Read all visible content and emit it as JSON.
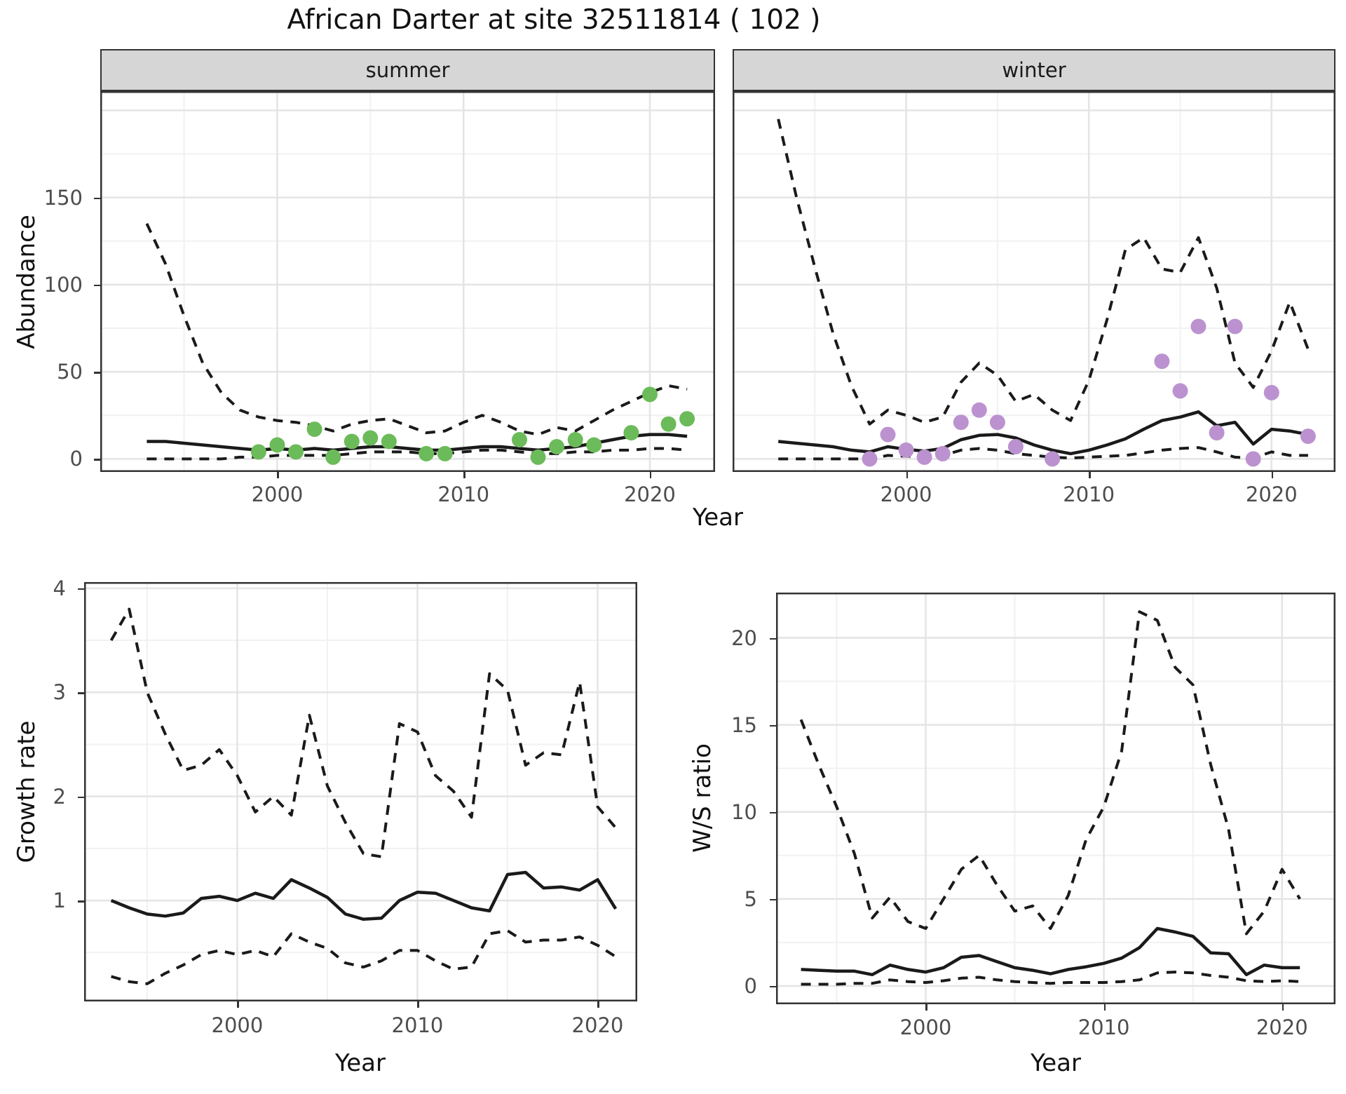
{
  "title": "African Darter at site 32511814 ( 102 )",
  "colors": {
    "summer_point": "#6CBB5A",
    "winter_point": "#BB92CF",
    "line": "#1A1A1A",
    "strip_bg": "#D6D6D6",
    "panel_border": "#333333",
    "grid_major": "#E4E4E4",
    "grid_minor": "#F1F1F1",
    "axis_text": "#4D4D4D",
    "text": "#111111"
  },
  "chart_data": [
    {
      "id": "abundance-summer",
      "type": "line",
      "facet_label": "summer",
      "xlabel": "Year",
      "ylabel": "Abundance",
      "xlim": [
        1990.5,
        2023.5
      ],
      "ylim": [
        -7.5,
        211
      ],
      "x_ticks": [
        2000,
        2010,
        2020
      ],
      "x_minor": [
        1995,
        2005,
        2015
      ],
      "y_ticks": [
        0,
        50,
        100,
        150
      ],
      "y_major_grid": [
        0,
        50,
        100,
        150,
        200
      ],
      "y_minor_grid": [
        25,
        75,
        125,
        175
      ],
      "show_y_tick_labels": true,
      "x": [
        1993,
        1994,
        1995,
        1996,
        1997,
        1998,
        1999,
        2000,
        2001,
        2002,
        2003,
        2004,
        2005,
        2006,
        2007,
        2008,
        2009,
        2010,
        2011,
        2012,
        2013,
        2014,
        2015,
        2016,
        2017,
        2018,
        2019,
        2020,
        2021,
        2022
      ],
      "series": [
        {
          "name": "upper_ci",
          "style": "dashed",
          "values": [
            135,
            112,
            82,
            55,
            38,
            28,
            24,
            22,
            21,
            19,
            16,
            20,
            22,
            23,
            19,
            15,
            16,
            21,
            25,
            21,
            16,
            14,
            18,
            16,
            22,
            28,
            33,
            38,
            42,
            40
          ]
        },
        {
          "name": "median",
          "style": "solid",
          "values": [
            10,
            10,
            9,
            8,
            7,
            6,
            5,
            6,
            5,
            6,
            5,
            6,
            7,
            7,
            6,
            5,
            5,
            6,
            7,
            7,
            6,
            5,
            6,
            7,
            9,
            11,
            13,
            14,
            14,
            13
          ]
        },
        {
          "name": "lower_ci",
          "style": "dashed",
          "values": [
            0,
            0,
            0,
            0,
            0,
            1,
            1,
            2,
            2,
            2,
            2,
            3,
            4,
            4,
            4,
            3,
            3,
            4,
            5,
            5,
            4,
            3,
            3,
            4,
            4,
            5,
            5,
            6,
            6,
            5
          ]
        }
      ],
      "points": {
        "name": "observed-counts-summer",
        "color_key": "summer_point",
        "x": [
          1999,
          2000,
          2001,
          2002,
          2003,
          2004,
          2005,
          2006,
          2008,
          2009,
          2013,
          2014,
          2015,
          2016,
          2017,
          2019,
          2020,
          2021,
          2022
        ],
        "y": [
          4,
          8,
          4,
          17,
          1,
          10,
          12,
          10,
          3,
          3,
          11,
          1,
          7,
          11,
          8,
          15,
          37,
          20,
          23
        ]
      }
    },
    {
      "id": "abundance-winter",
      "type": "line",
      "facet_label": "winter",
      "xlabel": "Year",
      "ylabel": "Abundance",
      "xlim": [
        1990.5,
        2023.5
      ],
      "ylim": [
        -7.5,
        211
      ],
      "x_ticks": [
        2000,
        2010,
        2020
      ],
      "x_minor": [
        1995,
        2005,
        2015
      ],
      "y_ticks": [
        0,
        50,
        100,
        150
      ],
      "y_major_grid": [
        0,
        50,
        100,
        150,
        200
      ],
      "y_minor_grid": [
        25,
        75,
        125,
        175
      ],
      "show_y_tick_labels": false,
      "x": [
        1993,
        1994,
        1995,
        1996,
        1997,
        1998,
        1999,
        2000,
        2001,
        2002,
        2003,
        2004,
        2005,
        2006,
        2007,
        2008,
        2009,
        2010,
        2011,
        2012,
        2013,
        2014,
        2015,
        2016,
        2017,
        2018,
        2019,
        2020,
        2021,
        2022
      ],
      "series": [
        {
          "name": "upper_ci",
          "style": "dashed",
          "values": [
            195,
            150,
            110,
            72,
            42,
            20,
            28,
            25,
            21,
            24,
            44,
            55,
            48,
            33,
            37,
            28,
            22,
            45,
            80,
            120,
            127,
            109,
            107,
            127,
            98,
            55,
            41,
            62,
            90,
            63
          ]
        },
        {
          "name": "median",
          "style": "solid",
          "values": [
            10,
            9,
            8,
            7,
            5,
            4,
            7,
            5.5,
            4.5,
            6,
            11,
            13.5,
            14,
            12,
            8,
            5,
            3,
            5,
            8,
            11.5,
            17,
            22,
            24,
            27,
            19,
            21,
            8.5,
            17,
            16,
            14
          ]
        },
        {
          "name": "lower_ci",
          "style": "dashed",
          "values": [
            0,
            0,
            0,
            0,
            0,
            0,
            2,
            1.5,
            1.5,
            2,
            5,
            6,
            5,
            3,
            2,
            1,
            0.5,
            1,
            1.5,
            2,
            3.5,
            5,
            6,
            6.5,
            4,
            1,
            0.5,
            4,
            2,
            2
          ]
        }
      ],
      "points": {
        "name": "observed-counts-winter",
        "color_key": "winter_point",
        "x": [
          1998,
          1999,
          2000,
          2001,
          2002,
          2003,
          2004,
          2005,
          2006,
          2008,
          2014,
          2015,
          2016,
          2017,
          2018,
          2019,
          2020,
          2022
        ],
        "y": [
          0,
          14,
          5,
          1,
          3,
          21,
          28,
          21,
          7,
          0,
          56,
          39,
          76,
          15,
          76,
          0,
          38,
          13
        ]
      }
    },
    {
      "id": "growth-rate",
      "type": "line",
      "facet_label": "",
      "xlabel": "Year",
      "ylabel": "Growth rate",
      "xlim": [
        1991.5,
        2022.2
      ],
      "ylim": [
        0.03,
        4.06
      ],
      "x_ticks": [
        2000,
        2010,
        2020
      ],
      "x_minor": [
        1995,
        2005,
        2015
      ],
      "y_ticks": [
        1,
        2,
        3,
        4
      ],
      "y_major_grid": [
        1,
        2,
        3,
        4
      ],
      "y_minor_grid": [
        0.5,
        1.5,
        2.5,
        3.5
      ],
      "show_y_tick_labels": true,
      "x": [
        1993,
        1994,
        1995,
        1996,
        1997,
        1998,
        1999,
        2000,
        2001,
        2002,
        2003,
        2004,
        2005,
        2006,
        2007,
        2008,
        2009,
        2010,
        2011,
        2012,
        2013,
        2014,
        2015,
        2016,
        2017,
        2018,
        2019,
        2020,
        2021
      ],
      "series": [
        {
          "name": "upper_ci",
          "style": "dashed",
          "values": [
            3.5,
            3.8,
            3.0,
            2.6,
            2.25,
            2.3,
            2.45,
            2.2,
            1.85,
            2.0,
            1.82,
            2.78,
            2.1,
            1.75,
            1.45,
            1.42,
            2.7,
            2.62,
            2.2,
            2.05,
            1.8,
            3.18,
            3.02,
            2.3,
            2.42,
            2.4,
            3.1,
            1.9,
            1.7
          ]
        },
        {
          "name": "median",
          "style": "solid",
          "values": [
            1.0,
            0.93,
            0.87,
            0.85,
            0.88,
            1.02,
            1.04,
            1.0,
            1.07,
            1.02,
            1.2,
            1.12,
            1.03,
            0.87,
            0.82,
            0.83,
            1.0,
            1.08,
            1.07,
            1.0,
            0.93,
            0.9,
            1.25,
            1.27,
            1.12,
            1.13,
            1.1,
            1.2,
            0.92
          ]
        },
        {
          "name": "lower_ci",
          "style": "dashed",
          "values": [
            0.27,
            0.22,
            0.2,
            0.3,
            0.38,
            0.48,
            0.52,
            0.48,
            0.52,
            0.46,
            0.68,
            0.6,
            0.54,
            0.4,
            0.36,
            0.42,
            0.52,
            0.52,
            0.42,
            0.34,
            0.36,
            0.68,
            0.71,
            0.6,
            0.62,
            0.62,
            0.65,
            0.57,
            0.46
          ]
        }
      ],
      "points": null
    },
    {
      "id": "ws-ratio",
      "type": "line",
      "facet_label": "",
      "xlabel": "Year",
      "ylabel": "W/S ratio",
      "xlim": [
        1991.6,
        2023.0
      ],
      "ylim": [
        -1.05,
        22.6
      ],
      "x_ticks": [
        2000,
        2010,
        2020
      ],
      "x_minor": [
        1995,
        2005,
        2015
      ],
      "y_ticks": [
        0,
        5,
        10,
        15,
        20
      ],
      "y_major_grid": [
        0,
        5,
        10,
        15,
        20
      ],
      "y_minor_grid": [
        2.5,
        7.5,
        12.5,
        17.5
      ],
      "show_y_tick_labels": true,
      "x": [
        1993,
        1994,
        1995,
        1996,
        1997,
        1998,
        1999,
        2000,
        2001,
        2002,
        2003,
        2004,
        2005,
        2006,
        2007,
        2008,
        2009,
        2010,
        2011,
        2012,
        2013,
        2014,
        2015,
        2016,
        2017,
        2018,
        2019,
        2020,
        2021
      ],
      "series": [
        {
          "name": "upper_ci",
          "style": "dashed",
          "values": [
            15.3,
            12.7,
            10.3,
            7.6,
            3.9,
            5.1,
            3.7,
            3.3,
            5.0,
            6.7,
            7.5,
            5.8,
            4.3,
            4.6,
            3.3,
            5.2,
            8.4,
            10.3,
            13.5,
            21.5,
            21.0,
            18.3,
            17.3,
            12.7,
            9.0,
            3.0,
            4.3,
            6.7,
            5.0
          ]
        },
        {
          "name": "median",
          "style": "solid",
          "values": [
            0.95,
            0.9,
            0.85,
            0.85,
            0.65,
            1.2,
            0.95,
            0.8,
            1.05,
            1.65,
            1.75,
            1.4,
            1.05,
            0.9,
            0.7,
            0.95,
            1.1,
            1.3,
            1.6,
            2.2,
            3.3,
            3.1,
            2.85,
            1.9,
            1.85,
            0.65,
            1.2,
            1.05,
            1.05
          ]
        },
        {
          "name": "lower_ci",
          "style": "dashed",
          "values": [
            0.1,
            0.1,
            0.1,
            0.15,
            0.15,
            0.35,
            0.25,
            0.2,
            0.3,
            0.45,
            0.5,
            0.35,
            0.25,
            0.2,
            0.15,
            0.2,
            0.2,
            0.2,
            0.25,
            0.35,
            0.75,
            0.8,
            0.75,
            0.6,
            0.5,
            0.3,
            0.25,
            0.3,
            0.25
          ]
        }
      ],
      "points": null
    }
  ]
}
